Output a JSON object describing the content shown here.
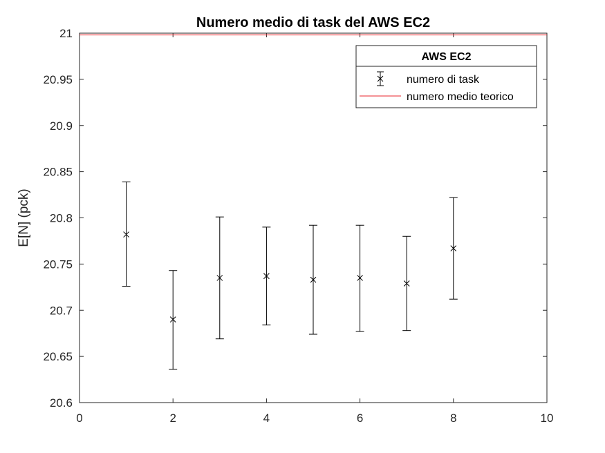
{
  "chart_data": {
    "type": "scatter",
    "title": "Numero medio di task del AWS EC2",
    "xlabel": "",
    "ylabel": "E[N] (pck)",
    "xlim": [
      0,
      10
    ],
    "ylim": [
      20.6,
      21
    ],
    "xticks": [
      "0",
      "2",
      "4",
      "6",
      "8",
      "10"
    ],
    "yticks": [
      "20.6",
      "20.65",
      "20.7",
      "20.75",
      "20.8",
      "20.85",
      "20.9",
      "20.95",
      "21"
    ],
    "grid": false,
    "legend": {
      "title": "AWS EC2",
      "placement": "top-right",
      "entries": [
        "numero di task",
        "numero medio teorico"
      ]
    },
    "series": [
      {
        "name": "numero di task",
        "style": "errorbar",
        "color": "#000000",
        "x": [
          1,
          2,
          3,
          4,
          5,
          6,
          7,
          8
        ],
        "y": [
          20.782,
          20.69,
          20.735,
          20.737,
          20.733,
          20.735,
          20.729,
          20.767
        ],
        "lower": [
          20.726,
          20.636,
          20.669,
          20.684,
          20.674,
          20.677,
          20.678,
          20.712
        ],
        "upper": [
          20.839,
          20.743,
          20.801,
          20.79,
          20.792,
          20.792,
          20.78,
          20.822
        ]
      },
      {
        "name": "numero medio teorico",
        "style": "hline",
        "color": "#e8262b",
        "y": 20.998
      }
    ]
  }
}
